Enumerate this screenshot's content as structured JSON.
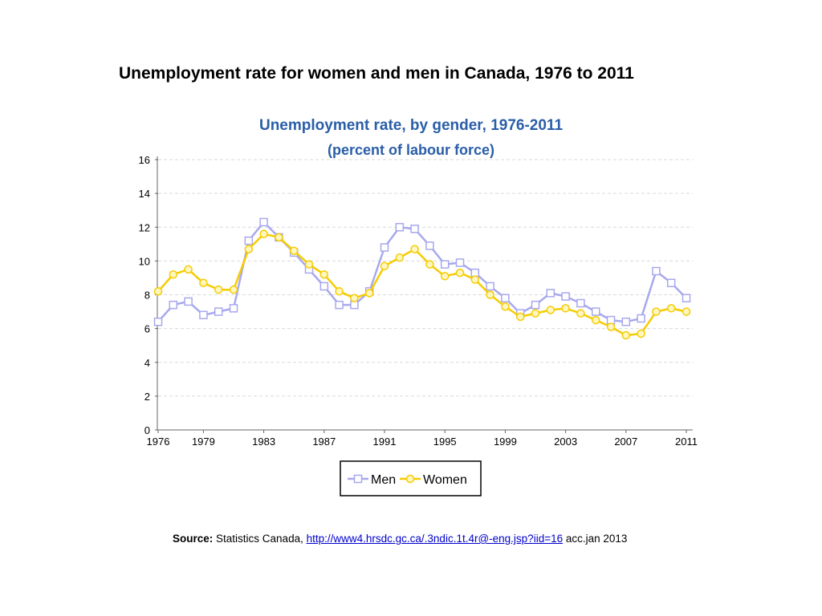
{
  "page_title": "Unemployment rate for women and men in Canada, 1976 to 2011",
  "source": {
    "label": "Source:",
    "text": "Statistics Canada,",
    "link": "http://www4.hrsdc.gc.ca/.3ndic.1t.4r@-eng.jsp?iid=16",
    "suffix": "acc.jan 2013"
  },
  "chart_data": {
    "type": "line",
    "title": "Unemployment rate, by gender, 1976-2011",
    "subtitle": "(percent of labour force)",
    "xlabel": "",
    "ylabel": "",
    "ylim": [
      0,
      16
    ],
    "yticks": [
      0,
      2,
      4,
      6,
      8,
      10,
      12,
      14,
      16
    ],
    "xlim": [
      1976,
      2011
    ],
    "xticks": [
      1976,
      1979,
      1983,
      1987,
      1991,
      1995,
      1999,
      2003,
      2007,
      2011
    ],
    "grid": "horizontal dashed",
    "legend_position": "bottom-center",
    "x": [
      1976,
      1977,
      1978,
      1979,
      1980,
      1981,
      1982,
      1983,
      1984,
      1985,
      1986,
      1987,
      1988,
      1989,
      1990,
      1991,
      1992,
      1993,
      1994,
      1995,
      1996,
      1997,
      1998,
      1999,
      2000,
      2001,
      2002,
      2003,
      2004,
      2005,
      2006,
      2007,
      2008,
      2009,
      2010,
      2011
    ],
    "series": [
      {
        "name": "Men",
        "color": "#a8a8ee",
        "marker": "square",
        "values": [
          6.4,
          7.4,
          7.6,
          6.8,
          7.0,
          7.2,
          11.2,
          12.3,
          11.4,
          10.5,
          9.5,
          8.5,
          7.4,
          7.4,
          8.2,
          10.8,
          12.0,
          11.9,
          10.9,
          9.8,
          9.9,
          9.3,
          8.5,
          7.8,
          6.9,
          7.4,
          8.1,
          7.9,
          7.5,
          7.0,
          6.5,
          6.4,
          6.6,
          9.4,
          8.7,
          7.8
        ]
      },
      {
        "name": "Women",
        "color": "#f5cc00",
        "marker": "circle",
        "values": [
          8.2,
          9.2,
          9.5,
          8.7,
          8.3,
          8.3,
          10.7,
          11.6,
          11.4,
          10.6,
          9.8,
          9.2,
          8.2,
          7.8,
          8.1,
          9.7,
          10.2,
          10.7,
          9.8,
          9.1,
          9.3,
          8.9,
          8.0,
          7.3,
          6.7,
          6.9,
          7.1,
          7.2,
          6.9,
          6.5,
          6.1,
          5.6,
          5.7,
          7.0,
          7.2,
          7.0
        ]
      }
    ]
  }
}
